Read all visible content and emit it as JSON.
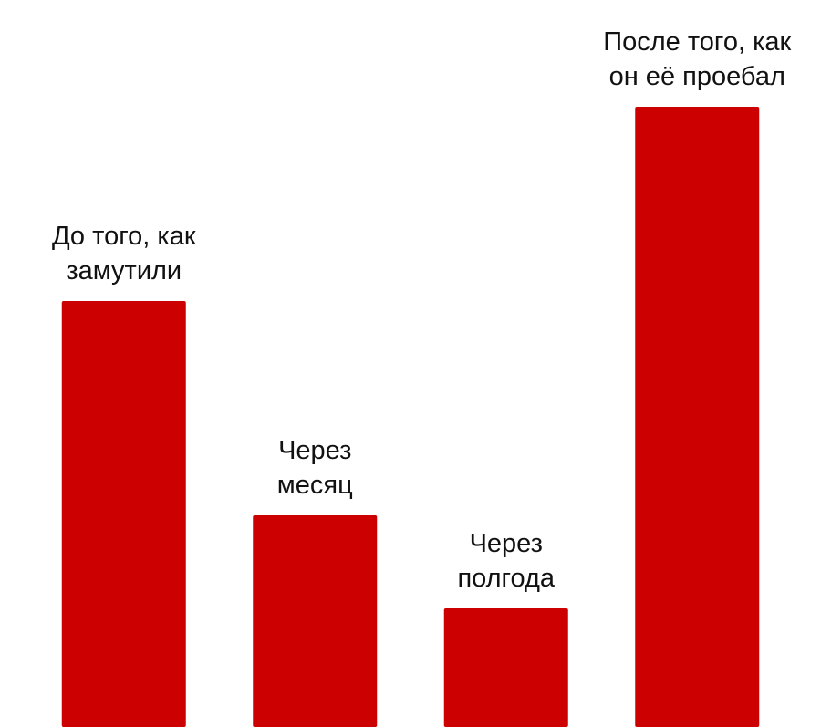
{
  "chart_data": {
    "type": "bar",
    "categories": [
      "До того, как\nзамутили",
      "Через\nмесяц",
      "Через\nполгода",
      "После того, как\nон её проебал"
    ],
    "values": [
      467,
      232,
      130,
      680
    ],
    "color": "#cc0000",
    "ylim": [
      0,
      797
    ]
  }
}
